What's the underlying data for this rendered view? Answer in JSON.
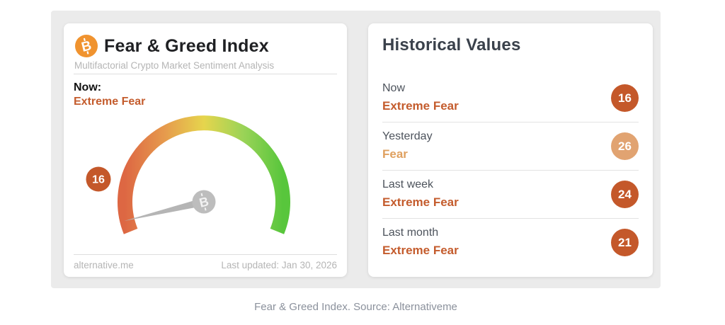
{
  "colors": {
    "panel_bg": "#ebebeb",
    "card_bg": "#ffffff",
    "bitcoin_orange": "#f0932f",
    "extreme_fear": "#c45c2d",
    "fear": "#dfa05f",
    "badge_dark": "#c4582a",
    "badge_light": "#e1a371",
    "needle_gray": "#b5b5b5",
    "gauge_gradient": [
      "#dd6743",
      "#e69a4d",
      "#e6d54d",
      "#9ad357",
      "#58c63c"
    ]
  },
  "gauge_card": {
    "title": "Fear & Greed Index",
    "subtitle": "Multifactorial Crypto Market Sentiment Analysis",
    "now_label": "Now:",
    "now_classification": "Extreme Fear",
    "now_classification_color": "#c45c2d",
    "value": 16,
    "value_badge_color": "#c4582a",
    "source": "alternative.me",
    "last_updated": "Last updated: Jan 30, 2026"
  },
  "historical_card": {
    "title": "Historical Values",
    "rows": [
      {
        "label": "Now",
        "classification": "Extreme Fear",
        "value": 16,
        "badge_color": "#c4582a",
        "text_color": "#c45c2d"
      },
      {
        "label": "Yesterday",
        "classification": "Fear",
        "value": 26,
        "badge_color": "#e1a371",
        "text_color": "#dfa05f"
      },
      {
        "label": "Last week",
        "classification": "Extreme Fear",
        "value": 24,
        "badge_color": "#c4582a",
        "text_color": "#c45c2d"
      },
      {
        "label": "Last month",
        "classification": "Extreme Fear",
        "value": 21,
        "badge_color": "#c4582a",
        "text_color": "#c45c2d"
      }
    ]
  },
  "caption": "Fear & Greed Index. Source: Alternativeme",
  "chart_data": [
    {
      "type": "gauge",
      "title": "Fear & Greed Index",
      "value": 16,
      "min": 0,
      "max": 100,
      "classification": "Extreme Fear",
      "arc_sweep_degrees": 225,
      "color_scale_left_to_right": [
        "#dd6743",
        "#e69a4d",
        "#e6d54d",
        "#9ad357",
        "#58c63c"
      ]
    },
    {
      "type": "table",
      "title": "Historical Values",
      "columns": [
        "period",
        "classification",
        "value"
      ],
      "rows": [
        [
          "Now",
          "Extreme Fear",
          16
        ],
        [
          "Yesterday",
          "Fear",
          26
        ],
        [
          "Last week",
          "Extreme Fear",
          24
        ],
        [
          "Last month",
          "Extreme Fear",
          21
        ]
      ]
    }
  ]
}
